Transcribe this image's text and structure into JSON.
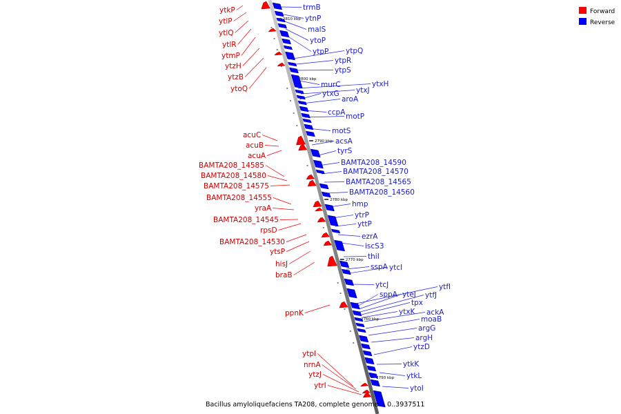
{
  "caption": "Bacillus amyloliquefaciens TA208, complete genome. - 0..3937511",
  "legend": [
    {
      "label": "Forward",
      "color": "#ff0000"
    },
    {
      "label": "Reverse",
      "color": "#0000ff"
    }
  ],
  "colors": {
    "forward": "#ff0000",
    "reverse": "#0000ff",
    "forward_text": "#cc0000",
    "reverse_text": "#1a1acc",
    "backbone": "#999999"
  },
  "ticks": [
    "2810 kbp",
    "2800 kbp",
    "2790 kbp",
    "2780 kbp",
    "2770 kbp",
    "2760 kbp",
    "2750 kbp"
  ],
  "forward_labels": [
    "ytkP",
    "ytlP",
    "ytlQ",
    "ytlR",
    "ytmP",
    "ytzH",
    "ytzB",
    "ytoQ",
    "acuC",
    "acuB",
    "acuA",
    "BAMTA208_14585",
    "BAMTA208_14580",
    "BAMTA208_14575",
    "BAMTA208_14555",
    "yraA",
    "BAMTA208_14545",
    "rpsD",
    "BAMTA208_14530",
    "ytsP",
    "hisJ",
    "braB",
    "ppnK",
    "ytpI",
    "nrnA",
    "ytzJ",
    "ytrI"
  ],
  "reverse_labels": [
    "trmB",
    "ytnP",
    "malS",
    "ytoP",
    "ytpP",
    "ytpQ",
    "ytpR",
    "ytpS",
    "murC",
    "ytxH",
    "ytxJ",
    "ytxG",
    "aroA",
    "ccpA",
    "motP",
    "motS",
    "acsA",
    "tyrS",
    "BAMTA208_14590",
    "BAMTA208_14570",
    "BAMTA208_14565",
    "BAMTA208_14560",
    "hmp",
    "ytrP",
    "yttP",
    "ezrA",
    "iscS3",
    "thiI",
    "sspA",
    "ytcI",
    "ytcJ",
    "ytfI",
    "sppA",
    "yteJ",
    "ytfJ",
    "tpx",
    "ytxK",
    "ackA",
    "moaB",
    "argG",
    "argH",
    "ytzD",
    "ytkK",
    "ytkL",
    "ytoI"
  ]
}
